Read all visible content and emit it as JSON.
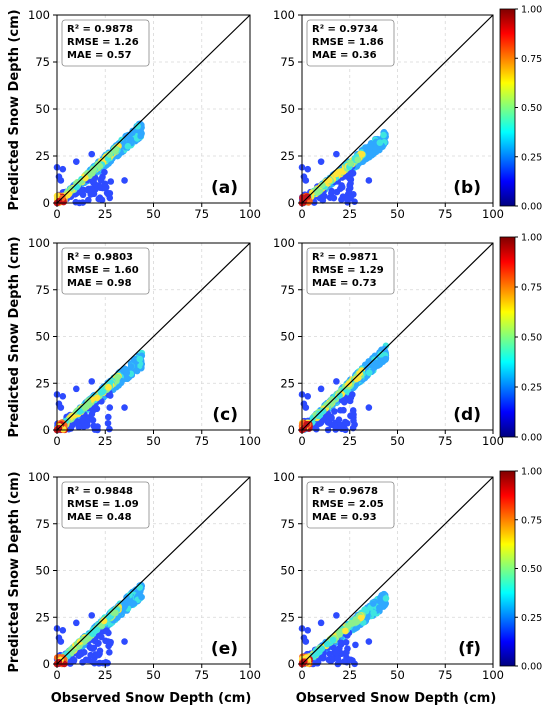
{
  "figure": {
    "ylabel": "Predicted Snow Depth (cm)",
    "xlabel": "Observed Snow Depth (cm)"
  },
  "colorbar": {
    "ticks": [
      "0.00",
      "0.25",
      "0.50",
      "0.75",
      "1.00"
    ],
    "colormap": "jet",
    "colors": [
      "#00007f",
      "#0000ff",
      "#007fff",
      "#00ffff",
      "#7fff7f",
      "#ffff00",
      "#ff7f00",
      "#ff0000",
      "#7f0000"
    ]
  },
  "chart_data": [
    {
      "type": "scatter",
      "panel": "(a)",
      "xlim": [
        0,
        100
      ],
      "ylim": [
        0,
        100
      ],
      "xticks": [
        "0",
        "25",
        "50",
        "75",
        "100"
      ],
      "yticks": [
        "0",
        "25",
        "50",
        "75",
        "100"
      ],
      "stats": [
        "R² = 0.9878",
        "RMSE = 1.26",
        "MAE = 0.57"
      ],
      "fit_line": {
        "x": [
          0,
          100
        ],
        "y": [
          0,
          100
        ]
      },
      "grid": true,
      "slope": 0.93
    },
    {
      "type": "scatter",
      "panel": "(b)",
      "xlim": [
        0,
        100
      ],
      "ylim": [
        0,
        100
      ],
      "xticks": [
        "0",
        "25",
        "50",
        "75",
        "100"
      ],
      "yticks": [
        "0",
        "25",
        "50",
        "75",
        "100"
      ],
      "stats": [
        "R² = 0.9734",
        "RMSE = 1.86",
        "MAE = 0.36"
      ],
      "fit_line": {
        "x": [
          0,
          100
        ],
        "y": [
          0,
          100
        ]
      },
      "grid": true,
      "slope": 0.82
    },
    {
      "type": "scatter",
      "panel": "(c)",
      "xlim": [
        0,
        100
      ],
      "ylim": [
        0,
        100
      ],
      "xticks": [
        "0",
        "25",
        "50",
        "75",
        "100"
      ],
      "yticks": [
        "0",
        "25",
        "50",
        "75",
        "100"
      ],
      "stats": [
        "R² = 0.9803",
        "RMSE = 1.60",
        "MAE = 0.98"
      ],
      "fit_line": {
        "x": [
          0,
          100
        ],
        "y": [
          0,
          100
        ]
      },
      "grid": true,
      "slope": 0.88
    },
    {
      "type": "scatter",
      "panel": "(d)",
      "xlim": [
        0,
        100
      ],
      "ylim": [
        0,
        100
      ],
      "xticks": [
        "0",
        "25",
        "50",
        "75",
        "100"
      ],
      "yticks": [
        "0",
        "25",
        "50",
        "75",
        "100"
      ],
      "stats": [
        "R² = 0.9871",
        "RMSE = 1.29",
        "MAE = 0.73"
      ],
      "fit_line": {
        "x": [
          0,
          100
        ],
        "y": [
          0,
          100
        ]
      },
      "grid": true,
      "slope": 0.98
    },
    {
      "type": "scatter",
      "panel": "(e)",
      "xlim": [
        0,
        100
      ],
      "ylim": [
        0,
        100
      ],
      "xticks": [
        "0",
        "25",
        "50",
        "75",
        "100"
      ],
      "yticks": [
        "0",
        "25",
        "50",
        "75",
        "100"
      ],
      "stats": [
        "R² = 0.9848",
        "RMSE = 1.09",
        "MAE = 0.48"
      ],
      "fit_line": {
        "x": [
          0,
          100
        ],
        "y": [
          0,
          100
        ]
      },
      "grid": true,
      "slope": 0.92
    },
    {
      "type": "scatter",
      "panel": "(f)",
      "xlim": [
        0,
        100
      ],
      "ylim": [
        0,
        100
      ],
      "xticks": [
        "0",
        "25",
        "50",
        "75",
        "100"
      ],
      "yticks": [
        "0",
        "25",
        "50",
        "75",
        "100"
      ],
      "stats": [
        "R² = 0.9678",
        "RMSE = 2.05",
        "MAE = 0.93"
      ],
      "fit_line": {
        "x": [
          0,
          100
        ],
        "y": [
          0,
          100
        ]
      },
      "grid": true,
      "slope": 0.82
    }
  ]
}
